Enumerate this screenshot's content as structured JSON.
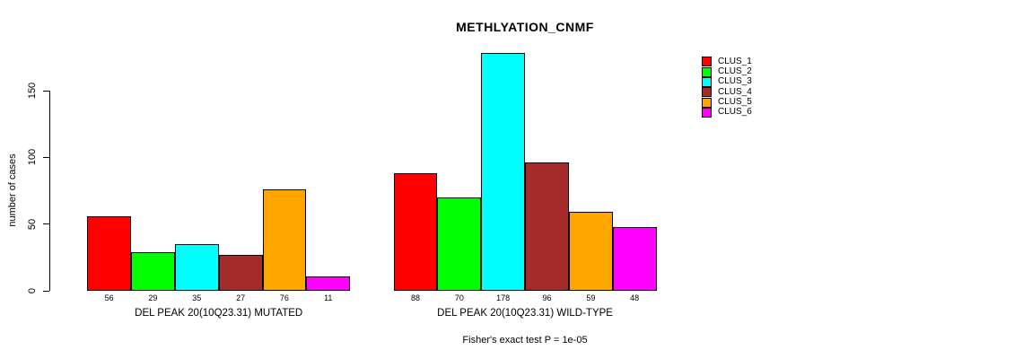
{
  "chart_data": {
    "type": "bar",
    "title": "METHLYATION_CNMF",
    "ylabel": "number of cases",
    "xlabel": "",
    "yticks": [
      0,
      50,
      100,
      150
    ],
    "ylim": [
      0,
      185
    ],
    "grid": false,
    "legend_position": "right-outside",
    "categories": [
      "DEL PEAK 20(10Q23.31) MUTATED",
      "DEL PEAK 20(10Q23.31) WILD-TYPE"
    ],
    "series": [
      {
        "name": "CLUS_1",
        "color": "#FF0000",
        "values": [
          56,
          88
        ]
      },
      {
        "name": "CLUS_2",
        "color": "#00FF00",
        "values": [
          29,
          70
        ]
      },
      {
        "name": "CLUS_3",
        "color": "#00FFFF",
        "values": [
          35,
          178
        ]
      },
      {
        "name": "CLUS_4",
        "color": "#A52A2A",
        "values": [
          27,
          96
        ]
      },
      {
        "name": "CLUS_5",
        "color": "#FFA500",
        "values": [
          76,
          59
        ]
      },
      {
        "name": "CLUS_6",
        "color": "#FF00FF",
        "values": [
          11,
          48
        ]
      }
    ],
    "bar_value_labels_shown": true,
    "annotation": "Fisher's exact test P = 1e-05"
  },
  "legend": {
    "items": [
      {
        "label": "CLUS_1",
        "color": "#FF0000"
      },
      {
        "label": "CLUS_2",
        "color": "#00FF00"
      },
      {
        "label": "CLUS_3",
        "color": "#00FFFF"
      },
      {
        "label": "CLUS_4",
        "color": "#A52A2A"
      },
      {
        "label": "CLUS_5",
        "color": "#FFA500"
      },
      {
        "label": "CLUS_6",
        "color": "#FF00FF"
      }
    ]
  },
  "colors": {
    "background": "#FFFFFF",
    "axis": "#000000",
    "text": "#000000"
  }
}
